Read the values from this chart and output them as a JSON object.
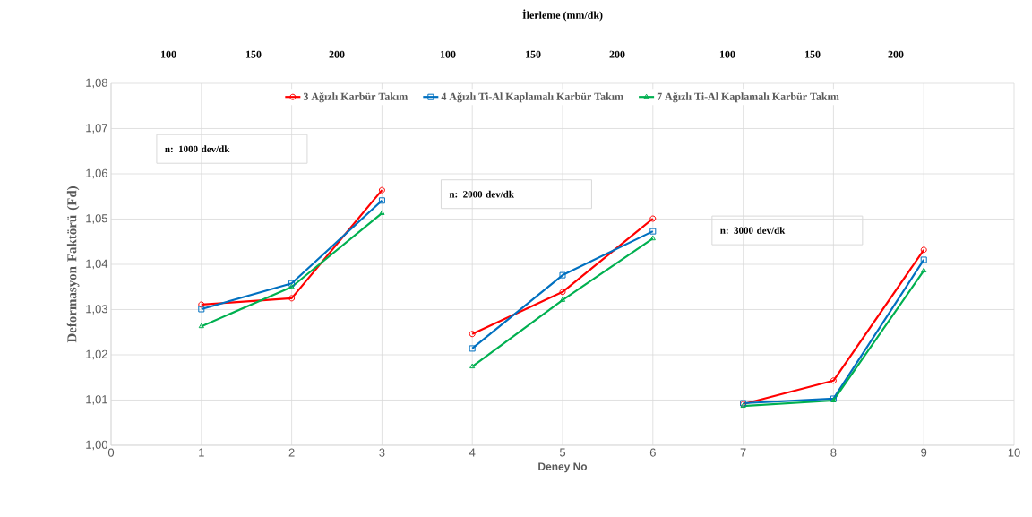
{
  "chart_data": {
    "type": "line",
    "xlabel": "Deney No",
    "ylabel": "Deformasyon Faktörü (Fd)",
    "title": "İlerleme (mm/dk)",
    "x": [
      1,
      2,
      3,
      3.5,
      4,
      5,
      6,
      6.5,
      7,
      8,
      9
    ],
    "series": [
      {
        "name": "3 Ağızlı Karbür Takım",
        "color": "#ff0000",
        "marker": "circle",
        "values": [
          1.0311,
          1.0325,
          1.0564,
          null,
          1.0246,
          1.0339,
          1.0501,
          null,
          1.0091,
          1.0143,
          1.0432
        ]
      },
      {
        "name": "4 Ağızlı Ti-Al Kaplamalı Karbür Takım",
        "color": "#0070c0",
        "marker": "square",
        "values": [
          1.0301,
          1.0358,
          1.0541,
          null,
          1.0214,
          1.0376,
          1.0473,
          null,
          1.0093,
          1.0103,
          1.041
        ]
      },
      {
        "name": "7 Ağızlı Ti-Al Kaplamalı Karbür Takım",
        "color": "#00b050",
        "marker": "triangle",
        "values": [
          1.0263,
          1.035,
          1.0513,
          null,
          1.0174,
          1.0321,
          1.0457,
          null,
          1.0087,
          1.0099,
          1.0386
        ]
      }
    ],
    "xlim": [
      0,
      10
    ],
    "xticks": [
      0,
      1,
      2,
      3,
      4,
      5,
      6,
      7,
      8,
      9,
      10
    ],
    "ylim": [
      1.0,
      1.08
    ],
    "yticks": [
      {
        "value": 1.0,
        "label": "1,00"
      },
      {
        "value": 1.01,
        "label": "1,01"
      },
      {
        "value": 1.02,
        "label": "1,02"
      },
      {
        "value": 1.03,
        "label": "1,03"
      },
      {
        "value": 1.04,
        "label": "1,04"
      },
      {
        "value": 1.05,
        "label": "1,05"
      },
      {
        "value": 1.06,
        "label": "1,06"
      },
      {
        "value": 1.07,
        "label": "1,07"
      },
      {
        "value": 1.08,
        "label": "1,08"
      }
    ],
    "annotations": [
      "n: 1000 dev/dk",
      "n: 2000 dev/dk",
      "n: 3000 dev/dk",
      "100",
      "150",
      "200",
      "100",
      "150",
      "200",
      "100",
      "150",
      "200"
    ],
    "grid": true,
    "legend": "top",
    "line_style": "solid"
  }
}
